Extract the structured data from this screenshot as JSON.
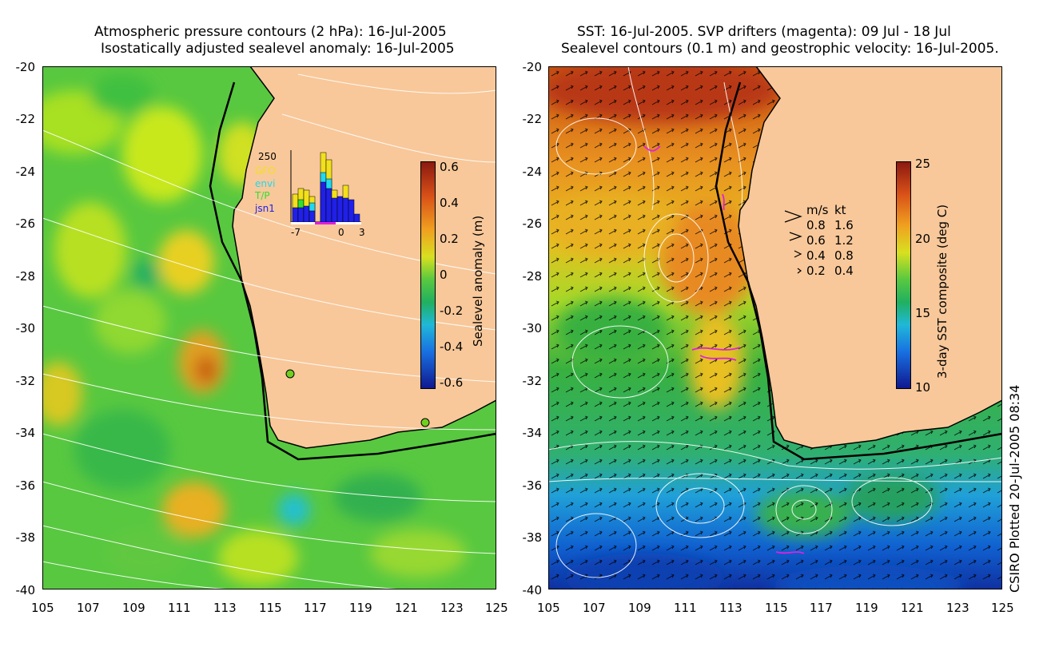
{
  "left_panel": {
    "title_line1": "Atmospheric pressure contours (2 hPa): 16-Jul-2005",
    "title_line2": "Isostatically adjusted sealevel anomaly: 16-Jul-2005",
    "colorbar_label": "Sealevel anomaly (m)",
    "colorbar_ticks": [
      "0.6",
      "0.4",
      "0.2",
      "0",
      "-0.2",
      "-0.4",
      "-0.6"
    ],
    "inset": {
      "ymax": "250",
      "legend": [
        "GFO",
        "envi",
        "T/P",
        "jsn1"
      ],
      "legend_colors": [
        "#f2e01c",
        "#20d8f0",
        "#30e030",
        "#2020e8"
      ],
      "xticks": [
        "-7",
        "0",
        "3"
      ]
    }
  },
  "right_panel": {
    "title_line1": "SST: 16-Jul-2005. SVP drifters (magenta): 09 Jul - 18 Jul",
    "title_line2": "Sealevel contours (0.1 m) and geostrophic velocity: 16-Jul-2005.",
    "colorbar_label": "3-day SST composite (deg C)",
    "colorbar_ticks": [
      "25",
      "20",
      "15",
      "10"
    ],
    "velocity_key": {
      "header_ms": "m/s",
      "header_kt": "kt",
      "rows": [
        {
          "ms": "0.8",
          "kt": "1.6"
        },
        {
          "ms": "0.6",
          "kt": "1.2"
        },
        {
          "ms": "0.4",
          "kt": "0.8"
        },
        {
          "ms": "0.2",
          "kt": "0.4"
        }
      ]
    }
  },
  "axes": {
    "lat_ticks": [
      "-20",
      "-22",
      "-24",
      "-26",
      "-28",
      "-30",
      "-32",
      "-34",
      "-36",
      "-38",
      "-40"
    ],
    "lon_ticks": [
      "105",
      "107",
      "109",
      "111",
      "113",
      "115",
      "117",
      "119",
      "121",
      "123",
      "125"
    ]
  },
  "footer": "CSIRO Plotted 20-Jul-2005 08:34",
  "colors": {
    "land": "#f8c89a",
    "drifter": "#e020e0"
  }
}
